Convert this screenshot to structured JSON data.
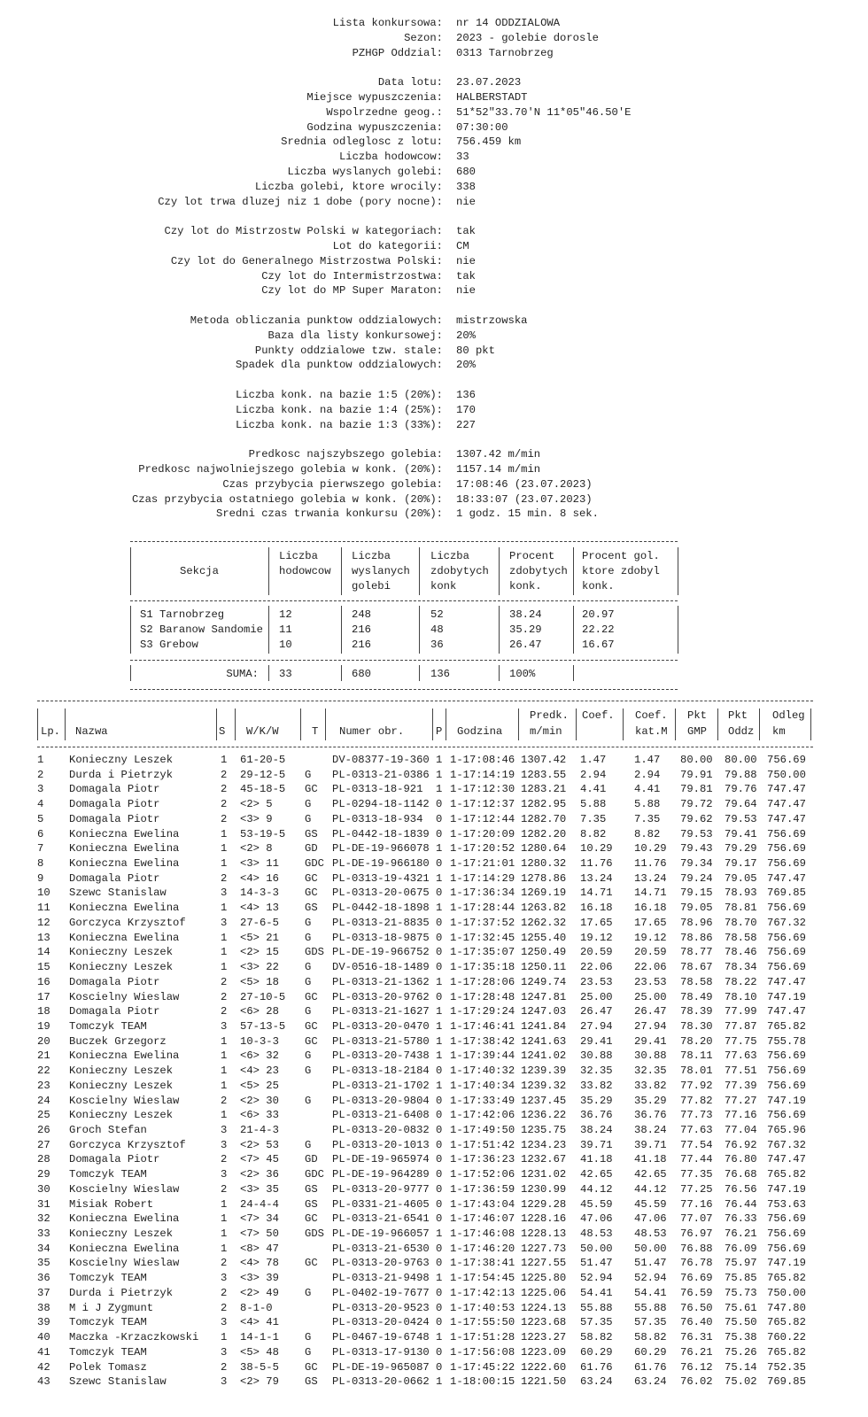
{
  "info": [
    {
      "label": "Lista konkursowa:",
      "value": "nr 14 ODDZIALOWA"
    },
    {
      "label": "Sezon:",
      "value": "2023 - golebie dorosle"
    },
    {
      "label": "PZHGP Oddzial:",
      "value": "0313 Tarnobrzeg"
    },
    null,
    {
      "label": "Data lotu:",
      "value": "23.07.2023"
    },
    {
      "label": "Miejsce wypuszczenia:",
      "value": "HALBERSTADT"
    },
    {
      "label": "Wspolrzedne geog.:",
      "value": "51*52\"33.70'N 11*05\"46.50'E"
    },
    {
      "label": "Godzina wypuszczenia:",
      "value": "07:30:00"
    },
    {
      "label": "Srednia odleglosc z lotu:",
      "value": "756.459 km"
    },
    {
      "label": "Liczba hodowcow:",
      "value": "33"
    },
    {
      "label": "Liczba wyslanych golebi:",
      "value": "680"
    },
    {
      "label": "Liczba golebi, ktore wrocily:",
      "value": "338"
    },
    {
      "label": "Czy lot trwa dluzej niz 1 dobe (pory nocne):",
      "value": "nie"
    },
    null,
    {
      "label": "Czy lot do Mistrzostw Polski w kategoriach:",
      "value": "tak"
    },
    {
      "label": "Lot do kategorii:",
      "value": "CM"
    },
    {
      "label": "Czy lot do Generalnego Mistrzostwa Polski:",
      "value": "nie"
    },
    {
      "label": "Czy lot do Intermistrzostwa:",
      "value": "tak"
    },
    {
      "label": "Czy lot do MP Super Maraton:",
      "value": "nie"
    },
    null,
    {
      "label": "Metoda obliczania punktow oddzialowych:",
      "value": "mistrzowska"
    },
    {
      "label": "Baza dla listy konkursowej:",
      "value": "20%"
    },
    {
      "label": "Punkty oddzialowe tzw. stale:",
      "value": "80 pkt"
    },
    {
      "label": "Spadek dla punktow oddzialowych:",
      "value": "20%"
    },
    null,
    {
      "label": "Liczba konk. na bazie 1:5 (20%):",
      "value": "136"
    },
    {
      "label": "Liczba konk. na bazie 1:4 (25%):",
      "value": "170"
    },
    {
      "label": "Liczba konk. na bazie 1:3 (33%):",
      "value": "227"
    },
    null,
    {
      "label": "Predkosc najszybszego golebia:",
      "value": "1307.42 m/min"
    },
    {
      "label": "Predkosc najwolniejszego golebia w konk. (20%):",
      "value": "1157.14 m/min"
    },
    {
      "label": "Czas przybycia pierwszego golebia:",
      "value": "17:08:46 (23.07.2023)"
    },
    {
      "label": "Czas przybycia ostatniego golebia w konk. (20%):",
      "value": "18:33:07 (23.07.2023)"
    },
    {
      "label": "Sredni czas trwania konkursu (20%):",
      "value": "1 godz. 15 min. 8 sek."
    }
  ],
  "sections": {
    "headers": [
      [
        "",
        "Liczba",
        "Liczba",
        "Liczba",
        "Procent",
        "Procent gol."
      ],
      [
        "Sekcja",
        "hodowcow",
        "wyslanych",
        "zdobytych",
        "zdobytych",
        "ktore zdobyl"
      ],
      [
        "",
        "",
        "golebi",
        "konk",
        "konk.",
        "konk."
      ]
    ],
    "rows": [
      [
        "S1 Tarnobrzeg",
        "12",
        "248",
        "52",
        "38.24",
        "20.97"
      ],
      [
        "S2 Baranow Sandomie",
        "11",
        "216",
        "48",
        "35.29",
        "22.22"
      ],
      [
        "S3 Grebow",
        "10",
        "216",
        "36",
        "26.47",
        "16.67"
      ]
    ],
    "total": [
      "SUMA:",
      "33",
      "680",
      "136",
      "100%",
      ""
    ]
  },
  "results": {
    "headers": [
      [
        "",
        "",
        "",
        "",
        "",
        "",
        "",
        "",
        "Predk.",
        "Coef.",
        "Coef.",
        "Pkt",
        "Pkt",
        "Odleg"
      ],
      [
        "Lp.",
        "Nazwa",
        "S",
        "W/K/W",
        "T",
        "Numer obr.",
        "P",
        "Godzina",
        "m/min",
        "",
        "kat.M",
        "GMP",
        "Oddz",
        "km"
      ]
    ],
    "rows": [
      [
        "1",
        "Konieczny Leszek",
        "1",
        "61-20-5",
        "",
        "DV-08377-19-360",
        "1",
        "1-17:08:46",
        "1307.42",
        "1.47",
        "1.47",
        "80.00",
        "80.00",
        "756.69"
      ],
      [
        "2",
        "Durda i Pietrzyk",
        "2",
        "29-12-5",
        "G",
        "PL-0313-21-0386",
        "1",
        "1-17:14:19",
        "1283.55",
        "2.94",
        "2.94",
        "79.91",
        "79.88",
        "750.00"
      ],
      [
        "3",
        "Domagala Piotr",
        "2",
        "45-18-5",
        "GC",
        "PL-0313-18-921",
        "1",
        "1-17:12:30",
        "1283.21",
        "4.41",
        "4.41",
        "79.81",
        "79.76",
        "747.47"
      ],
      [
        "4",
        "Domagala Piotr",
        "2",
        "<2> 5",
        "G",
        "PL-0294-18-1142",
        "0",
        "1-17:12:37",
        "1282.95",
        "5.88",
        "5.88",
        "79.72",
        "79.64",
        "747.47"
      ],
      [
        "5",
        "Domagala Piotr",
        "2",
        "<3> 9",
        "G",
        "PL-0313-18-934",
        "0",
        "1-17:12:44",
        "1282.70",
        "7.35",
        "7.35",
        "79.62",
        "79.53",
        "747.47"
      ],
      [
        "6",
        "Konieczna Ewelina",
        "1",
        "53-19-5",
        "GS",
        "PL-0442-18-1839",
        "0",
        "1-17:20:09",
        "1282.20",
        "8.82",
        "8.82",
        "79.53",
        "79.41",
        "756.69"
      ],
      [
        "7",
        "Konieczna Ewelina",
        "1",
        "<2> 8",
        "GD",
        "PL-DE-19-966078",
        "1",
        "1-17:20:52",
        "1280.64",
        "10.29",
        "10.29",
        "79.43",
        "79.29",
        "756.69"
      ],
      [
        "8",
        "Konieczna Ewelina",
        "1",
        "<3> 11",
        "GDC",
        "PL-DE-19-966180",
        "0",
        "1-17:21:01",
        "1280.32",
        "11.76",
        "11.76",
        "79.34",
        "79.17",
        "756.69"
      ],
      [
        "9",
        "Domagala Piotr",
        "2",
        "<4> 16",
        "GC",
        "PL-0313-19-4321",
        "1",
        "1-17:14:29",
        "1278.86",
        "13.24",
        "13.24",
        "79.24",
        "79.05",
        "747.47"
      ],
      [
        "10",
        "Szewc Stanislaw",
        "3",
        "14-3-3",
        "GC",
        "PL-0313-20-0675",
        "0",
        "1-17:36:34",
        "1269.19",
        "14.71",
        "14.71",
        "79.15",
        "78.93",
        "769.85"
      ],
      [
        "11",
        "Konieczna Ewelina",
        "1",
        "<4> 13",
        "GS",
        "PL-0442-18-1898",
        "1",
        "1-17:28:44",
        "1263.82",
        "16.18",
        "16.18",
        "79.05",
        "78.81",
        "756.69"
      ],
      [
        "12",
        "Gorczyca Krzysztof",
        "3",
        "27-6-5",
        "G",
        "PL-0313-21-8835",
        "0",
        "1-17:37:52",
        "1262.32",
        "17.65",
        "17.65",
        "78.96",
        "78.70",
        "767.32"
      ],
      [
        "13",
        "Konieczna Ewelina",
        "1",
        "<5> 21",
        "G",
        "PL-0313-18-9875",
        "0",
        "1-17:32:45",
        "1255.40",
        "19.12",
        "19.12",
        "78.86",
        "78.58",
        "756.69"
      ],
      [
        "14",
        "Konieczny Leszek",
        "1",
        "<2> 15",
        "GDS",
        "PL-DE-19-966752",
        "0",
        "1-17:35:07",
        "1250.49",
        "20.59",
        "20.59",
        "78.77",
        "78.46",
        "756.69"
      ],
      [
        "15",
        "Konieczny Leszek",
        "1",
        "<3> 22",
        "G",
        "DV-0516-18-1489",
        "0",
        "1-17:35:18",
        "1250.11",
        "22.06",
        "22.06",
        "78.67",
        "78.34",
        "756.69"
      ],
      [
        "16",
        "Domagala Piotr",
        "2",
        "<5> 18",
        "G",
        "PL-0313-21-1362",
        "1",
        "1-17:28:06",
        "1249.74",
        "23.53",
        "23.53",
        "78.58",
        "78.22",
        "747.47"
      ],
      [
        "17",
        "Koscielny Wieslaw",
        "2",
        "27-10-5",
        "GC",
        "PL-0313-20-9762",
        "0",
        "1-17:28:48",
        "1247.81",
        "25.00",
        "25.00",
        "78.49",
        "78.10",
        "747.19"
      ],
      [
        "18",
        "Domagala Piotr",
        "2",
        "<6> 28",
        "G",
        "PL-0313-21-1627",
        "1",
        "1-17:29:24",
        "1247.03",
        "26.47",
        "26.47",
        "78.39",
        "77.99",
        "747.47"
      ],
      [
        "19",
        "Tomczyk TEAM",
        "3",
        "57-13-5",
        "GC",
        "PL-0313-20-0470",
        "1",
        "1-17:46:41",
        "1241.84",
        "27.94",
        "27.94",
        "78.30",
        "77.87",
        "765.82"
      ],
      [
        "20",
        "Buczek Grzegorz",
        "1",
        "10-3-3",
        "GC",
        "PL-0313-21-5780",
        "1",
        "1-17:38:42",
        "1241.63",
        "29.41",
        "29.41",
        "78.20",
        "77.75",
        "755.78"
      ],
      [
        "21",
        "Konieczna Ewelina",
        "1",
        "<6> 32",
        "G",
        "PL-0313-20-7438",
        "1",
        "1-17:39:44",
        "1241.02",
        "30.88",
        "30.88",
        "78.11",
        "77.63",
        "756.69"
      ],
      [
        "22",
        "Konieczny Leszek",
        "1",
        "<4> 23",
        "G",
        "PL-0313-18-2184",
        "0",
        "1-17:40:32",
        "1239.39",
        "32.35",
        "32.35",
        "78.01",
        "77.51",
        "756.69"
      ],
      [
        "23",
        "Konieczny Leszek",
        "1",
        "<5> 25",
        "",
        "PL-0313-21-1702",
        "1",
        "1-17:40:34",
        "1239.32",
        "33.82",
        "33.82",
        "77.92",
        "77.39",
        "756.69"
      ],
      [
        "24",
        "Koscielny Wieslaw",
        "2",
        "<2> 30",
        "G",
        "PL-0313-20-9804",
        "0",
        "1-17:33:49",
        "1237.45",
        "35.29",
        "35.29",
        "77.82",
        "77.27",
        "747.19"
      ],
      [
        "25",
        "Konieczny Leszek",
        "1",
        "<6> 33",
        "",
        "PL-0313-21-6408",
        "0",
        "1-17:42:06",
        "1236.22",
        "36.76",
        "36.76",
        "77.73",
        "77.16",
        "756.69"
      ],
      [
        "26",
        "Groch Stefan",
        "3",
        "21-4-3",
        "",
        "PL-0313-20-0832",
        "0",
        "1-17:49:50",
        "1235.75",
        "38.24",
        "38.24",
        "77.63",
        "77.04",
        "765.96"
      ],
      [
        "27",
        "Gorczyca Krzysztof",
        "3",
        "<2> 53",
        "G",
        "PL-0313-20-1013",
        "0",
        "1-17:51:42",
        "1234.23",
        "39.71",
        "39.71",
        "77.54",
        "76.92",
        "767.32"
      ],
      [
        "28",
        "Domagala Piotr",
        "2",
        "<7> 45",
        "GD",
        "PL-DE-19-965974",
        "0",
        "1-17:36:23",
        "1232.67",
        "41.18",
        "41.18",
        "77.44",
        "76.80",
        "747.47"
      ],
      [
        "29",
        "Tomczyk TEAM",
        "3",
        "<2> 36",
        "GDC",
        "PL-DE-19-964289",
        "0",
        "1-17:52:06",
        "1231.02",
        "42.65",
        "42.65",
        "77.35",
        "76.68",
        "765.82"
      ],
      [
        "30",
        "Koscielny Wieslaw",
        "2",
        "<3> 35",
        "GS",
        "PL-0313-20-9777",
        "0",
        "1-17:36:59",
        "1230.99",
        "44.12",
        "44.12",
        "77.25",
        "76.56",
        "747.19"
      ],
      [
        "31",
        "Misiak Robert",
        "1",
        "24-4-4",
        "GS",
        "PL-0331-21-4605",
        "0",
        "1-17:43:04",
        "1229.28",
        "45.59",
        "45.59",
        "77.16",
        "76.44",
        "753.63"
      ],
      [
        "32",
        "Konieczna Ewelina",
        "1",
        "<7> 34",
        "GC",
        "PL-0313-21-6541",
        "0",
        "1-17:46:07",
        "1228.16",
        "47.06",
        "47.06",
        "77.07",
        "76.33",
        "756.69"
      ],
      [
        "33",
        "Konieczny Leszek",
        "1",
        "<7> 50",
        "GDS",
        "PL-DE-19-966057",
        "1",
        "1-17:46:08",
        "1228.13",
        "48.53",
        "48.53",
        "76.97",
        "76.21",
        "756.69"
      ],
      [
        "34",
        "Konieczna Ewelina",
        "1",
        "<8> 47",
        "",
        "PL-0313-21-6530",
        "0",
        "1-17:46:20",
        "1227.73",
        "50.00",
        "50.00",
        "76.88",
        "76.09",
        "756.69"
      ],
      [
        "35",
        "Koscielny Wieslaw",
        "2",
        "<4> 78",
        "GC",
        "PL-0313-20-9763",
        "0",
        "1-17:38:41",
        "1227.55",
        "51.47",
        "51.47",
        "76.78",
        "75.97",
        "747.19"
      ],
      [
        "36",
        "Tomczyk TEAM",
        "3",
        "<3> 39",
        "",
        "PL-0313-21-9498",
        "1",
        "1-17:54:45",
        "1225.80",
        "52.94",
        "52.94",
        "76.69",
        "75.85",
        "765.82"
      ],
      [
        "37",
        "Durda i Pietrzyk",
        "2",
        "<2> 49",
        "G",
        "PL-0402-19-7677",
        "0",
        "1-17:42:13",
        "1225.06",
        "54.41",
        "54.41",
        "76.59",
        "75.73",
        "750.00"
      ],
      [
        "38",
        "M i J Zygmunt",
        "2",
        "8-1-0",
        "",
        "PL-0313-20-9523",
        "0",
        "1-17:40:53",
        "1224.13",
        "55.88",
        "55.88",
        "76.50",
        "75.61",
        "747.80"
      ],
      [
        "39",
        "Tomczyk TEAM",
        "3",
        "<4> 41",
        "",
        "PL-0313-20-0424",
        "0",
        "1-17:55:50",
        "1223.68",
        "57.35",
        "57.35",
        "76.40",
        "75.50",
        "765.82"
      ],
      [
        "40",
        "Maczka -Krzaczkowski",
        "1",
        "14-1-1",
        "G",
        "PL-0467-19-6748",
        "1",
        "1-17:51:28",
        "1223.27",
        "58.82",
        "58.82",
        "76.31",
        "75.38",
        "760.22"
      ],
      [
        "41",
        "Tomczyk TEAM",
        "3",
        "<5> 48",
        "G",
        "PL-0313-17-9130",
        "0",
        "1-17:56:08",
        "1223.09",
        "60.29",
        "60.29",
        "76.21",
        "75.26",
        "765.82"
      ],
      [
        "42",
        "Polek Tomasz",
        "2",
        "38-5-5",
        "GC",
        "PL-DE-19-965087",
        "0",
        "1-17:45:22",
        "1222.60",
        "61.76",
        "61.76",
        "76.12",
        "75.14",
        "752.35"
      ],
      [
        "43",
        "Szewc Stanislaw",
        "3",
        "<2> 79",
        "GS",
        "PL-0313-20-0662",
        "1",
        "1-18:00:15",
        "1221.50",
        "63.24",
        "63.24",
        "76.02",
        "75.02",
        "769.85"
      ]
    ]
  }
}
